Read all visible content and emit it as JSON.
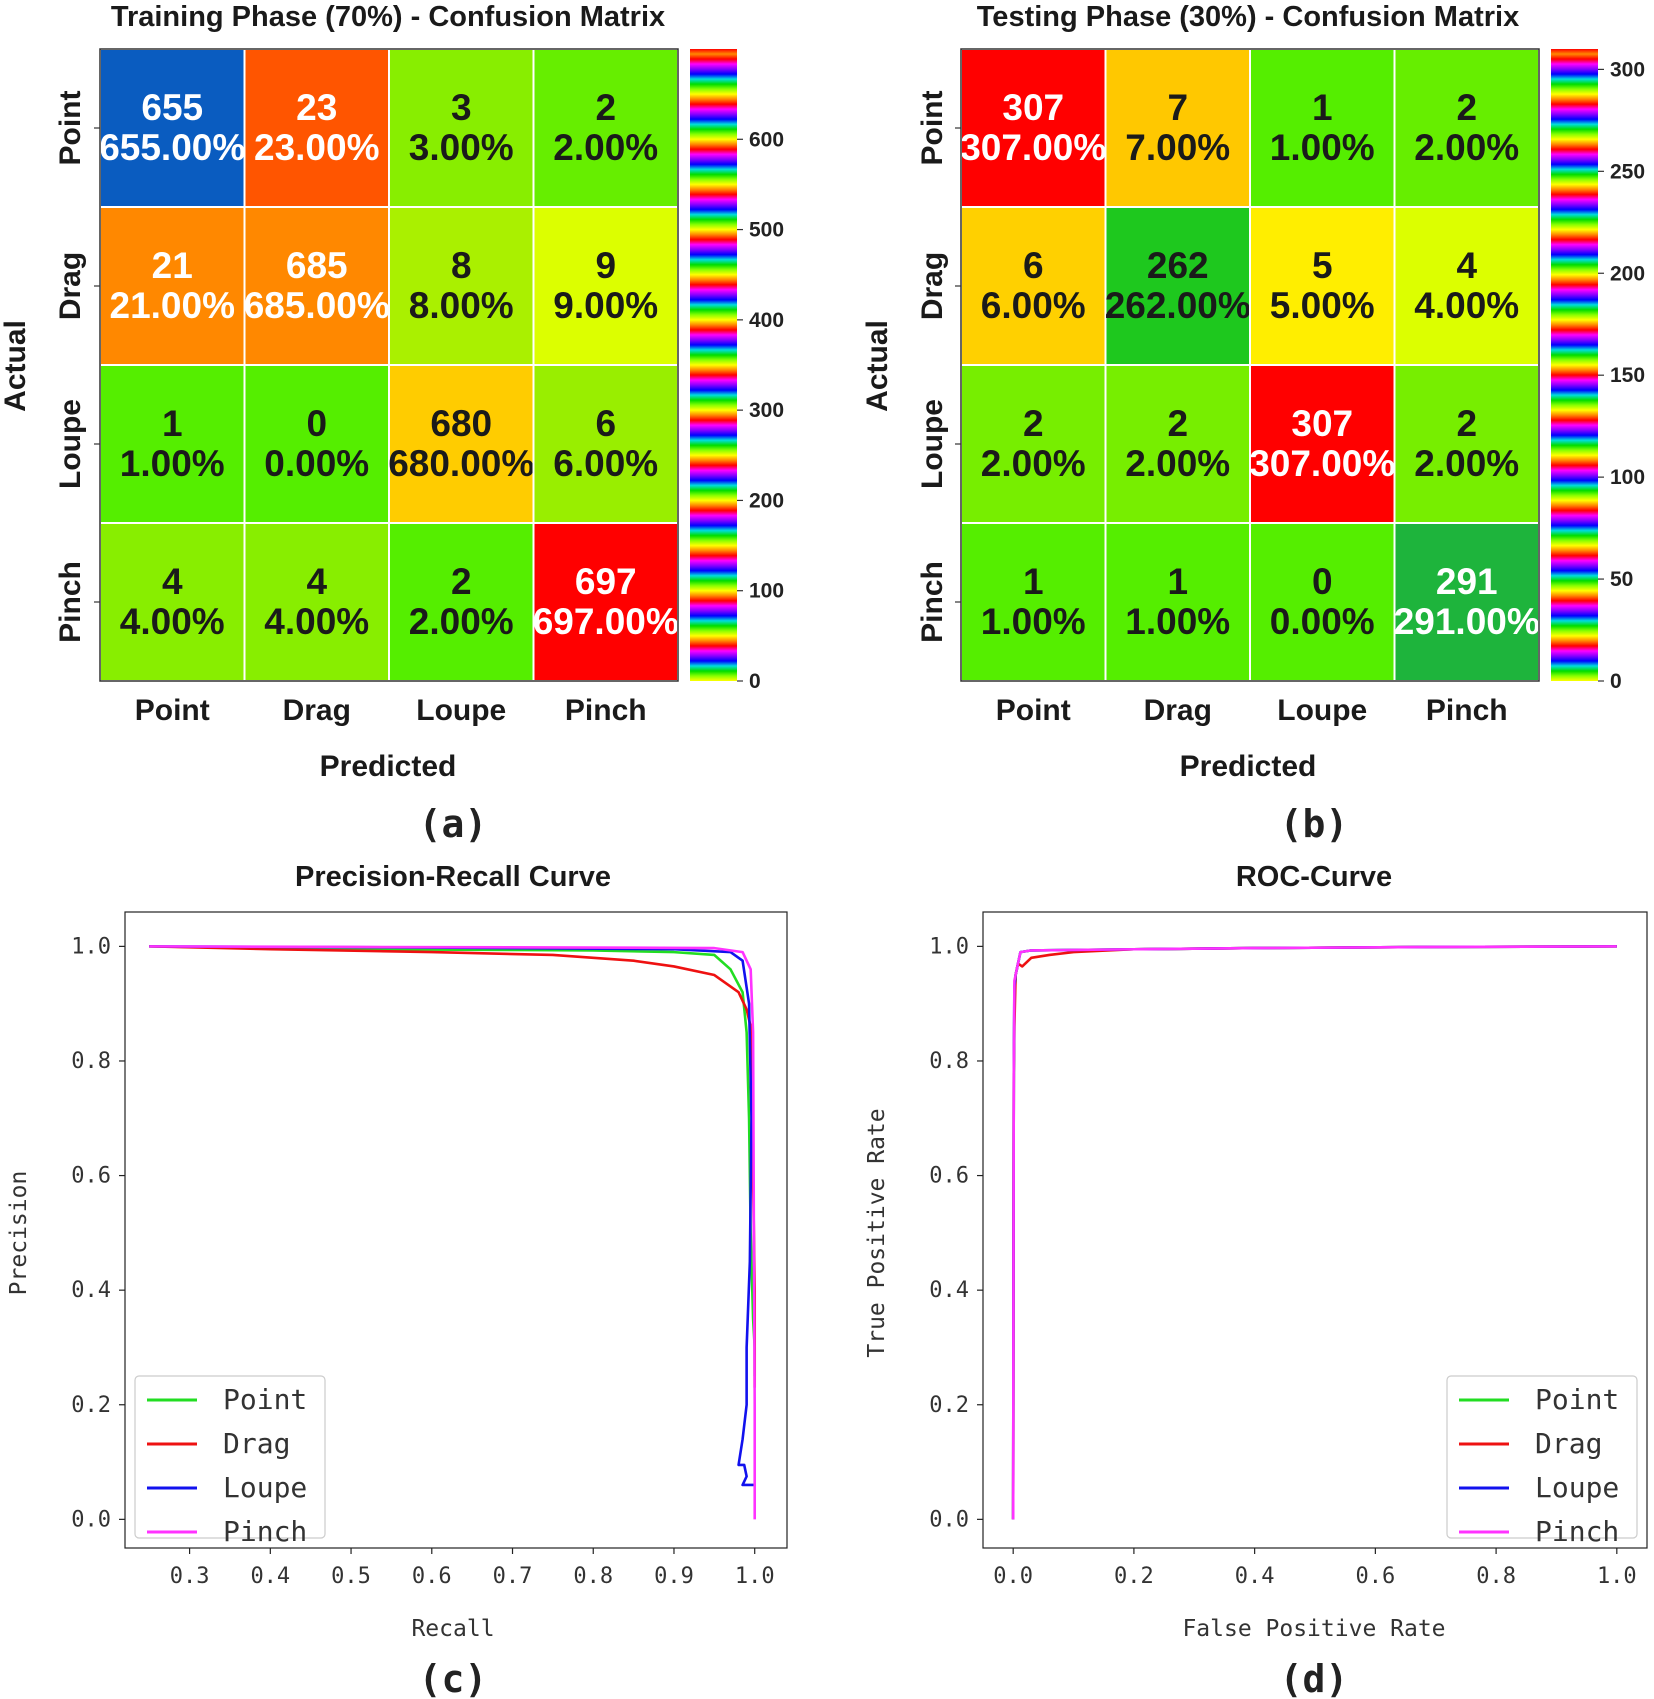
{
  "panels": {
    "a": {
      "label": "(a)"
    },
    "b": {
      "label": "(b)"
    },
    "c": {
      "label": "(c)"
    },
    "d": {
      "label": "(d)"
    }
  },
  "colors": {
    "Point": "#22dd22",
    "Drag": "#ee1111",
    "Loupe": "#1111ee",
    "Pinch": "#ff33ff"
  },
  "chart_data": [
    {
      "type": "heatmap",
      "id": "a",
      "title": "Training Phase (70%) - Confusion Matrix",
      "xlabel": "Predicted",
      "ylabel": "Actual",
      "x_categories": [
        "Point",
        "Drag",
        "Loupe",
        "Pinch"
      ],
      "y_categories": [
        "Point",
        "Drag",
        "Loupe",
        "Pinch"
      ],
      "values": [
        [
          655,
          23,
          3,
          2
        ],
        [
          21,
          685,
          8,
          9
        ],
        [
          1,
          0,
          680,
          6
        ],
        [
          4,
          4,
          2,
          697
        ]
      ],
      "cell_labels": [
        [
          [
            "655",
            "655.00%"
          ],
          [
            "23",
            "23.00%"
          ],
          [
            "3",
            "3.00%"
          ],
          [
            "2",
            "2.00%"
          ]
        ],
        [
          [
            "21",
            "21.00%"
          ],
          [
            "685",
            "685.00%"
          ],
          [
            "8",
            "8.00%"
          ],
          [
            "9",
            "9.00%"
          ]
        ],
        [
          [
            "1",
            "1.00%"
          ],
          [
            "0",
            "0.00%"
          ],
          [
            "680",
            "680.00%"
          ],
          [
            "6",
            "6.00%"
          ]
        ],
        [
          [
            "4",
            "4.00%"
          ],
          [
            "4",
            "4.00%"
          ],
          [
            "2",
            "2.00%"
          ],
          [
            "697",
            "697.00%"
          ]
        ]
      ],
      "cell_colors": [
        [
          "#0a5cc0",
          "#ff5500",
          "#88ee00",
          "#66ee00"
        ],
        [
          "#ff8800",
          "#ff8800",
          "#aaf000",
          "#dcff00"
        ],
        [
          "#55ee00",
          "#55ee00",
          "#ffcc00",
          "#99ee00"
        ],
        [
          "#88ee00",
          "#88ee00",
          "#55ee00",
          "#ff0000"
        ]
      ],
      "cell_text_light": [
        [
          true,
          true,
          false,
          false
        ],
        [
          true,
          true,
          false,
          false
        ],
        [
          false,
          false,
          false,
          false
        ],
        [
          false,
          false,
          false,
          true
        ]
      ],
      "colorbar": {
        "min": 0,
        "max": 700,
        "ticks": [
          0,
          100,
          200,
          300,
          400,
          500,
          600
        ]
      }
    },
    {
      "type": "heatmap",
      "id": "b",
      "title": "Testing Phase (30%) - Confusion Matrix",
      "xlabel": "Predicted",
      "ylabel": "Actual",
      "x_categories": [
        "Point",
        "Drag",
        "Loupe",
        "Pinch"
      ],
      "y_categories": [
        "Point",
        "Drag",
        "Loupe",
        "Pinch"
      ],
      "values": [
        [
          307,
          7,
          1,
          2
        ],
        [
          6,
          262,
          5,
          4
        ],
        [
          2,
          2,
          307,
          2
        ],
        [
          1,
          1,
          0,
          291
        ]
      ],
      "cell_labels": [
        [
          [
            "307",
            "307.00%"
          ],
          [
            "7",
            "7.00%"
          ],
          [
            "1",
            "1.00%"
          ],
          [
            "2",
            "2.00%"
          ]
        ],
        [
          [
            "6",
            "6.00%"
          ],
          [
            "262",
            "262.00%"
          ],
          [
            "5",
            "5.00%"
          ],
          [
            "4",
            "4.00%"
          ]
        ],
        [
          [
            "2",
            "2.00%"
          ],
          [
            "2",
            "2.00%"
          ],
          [
            "307",
            "307.00%"
          ],
          [
            "2",
            "2.00%"
          ]
        ],
        [
          [
            "1",
            "1.00%"
          ],
          [
            "1",
            "1.00%"
          ],
          [
            "0",
            "0.00%"
          ],
          [
            "291",
            "291.00%"
          ]
        ]
      ],
      "cell_colors": [
        [
          "#ff0000",
          "#ffc800",
          "#55ee00",
          "#66ee00"
        ],
        [
          "#ffd000",
          "#1ec81e",
          "#ffee00",
          "#dcff00"
        ],
        [
          "#77ee00",
          "#77ee00",
          "#ff0000",
          "#77ee00"
        ],
        [
          "#55ee00",
          "#55ee00",
          "#55ee00",
          "#1eb43c"
        ]
      ],
      "cell_text_light": [
        [
          true,
          false,
          false,
          false
        ],
        [
          false,
          false,
          false,
          false
        ],
        [
          false,
          false,
          true,
          false
        ],
        [
          false,
          false,
          false,
          true
        ]
      ],
      "colorbar": {
        "min": 0,
        "max": 310,
        "ticks": [
          0,
          50,
          100,
          150,
          200,
          250,
          300
        ]
      }
    },
    {
      "type": "line",
      "id": "c",
      "title": "Precision-Recall Curve",
      "xlabel": "Recall",
      "ylabel": "Precision",
      "xlim": [
        0.22,
        1.04
      ],
      "ylim": [
        -0.05,
        1.06
      ],
      "xticks": [
        0.3,
        0.4,
        0.5,
        0.6,
        0.7,
        0.8,
        0.9,
        1.0
      ],
      "yticks": [
        0.0,
        0.2,
        0.4,
        0.6,
        0.8,
        1.0
      ],
      "legend": "lower-left",
      "series": [
        {
          "name": "Point",
          "points": [
            [
              0.25,
              1.0
            ],
            [
              0.5,
              0.995
            ],
            [
              0.8,
              0.993
            ],
            [
              0.9,
              0.99
            ],
            [
              0.95,
              0.985
            ],
            [
              0.97,
              0.96
            ],
            [
              0.985,
              0.92
            ],
            [
              0.99,
              0.85
            ],
            [
              0.993,
              0.7
            ],
            [
              0.995,
              0.5
            ],
            [
              0.998,
              0.35
            ],
            [
              1.0,
              0.3
            ],
            [
              1.0,
              0.25
            ]
          ]
        },
        {
          "name": "Drag",
          "points": [
            [
              0.25,
              1.0
            ],
            [
              0.4,
              0.995
            ],
            [
              0.6,
              0.99
            ],
            [
              0.75,
              0.985
            ],
            [
              0.85,
              0.975
            ],
            [
              0.9,
              0.965
            ],
            [
              0.95,
              0.95
            ],
            [
              0.98,
              0.92
            ],
            [
              0.99,
              0.89
            ],
            [
              0.995,
              0.86
            ],
            [
              0.998,
              0.6
            ],
            [
              1.0,
              0.4
            ],
            [
              1.0,
              0.23
            ]
          ]
        },
        {
          "name": "Loupe",
          "points": [
            [
              0.25,
              1.0
            ],
            [
              0.6,
              0.998
            ],
            [
              0.9,
              0.995
            ],
            [
              0.97,
              0.99
            ],
            [
              0.985,
              0.975
            ],
            [
              0.993,
              0.9
            ],
            [
              0.996,
              0.7
            ],
            [
              0.994,
              0.45
            ],
            [
              0.99,
              0.3
            ],
            [
              0.99,
              0.2
            ],
            [
              0.985,
              0.14
            ],
            [
              0.98,
              0.095
            ],
            [
              0.987,
              0.095
            ],
            [
              0.99,
              0.075
            ],
            [
              0.985,
              0.06
            ],
            [
              1.0,
              0.06
            ]
          ]
        },
        {
          "name": "Pinch",
          "points": [
            [
              0.25,
              1.0
            ],
            [
              0.5,
              0.999
            ],
            [
              0.8,
              0.998
            ],
            [
              0.95,
              0.997
            ],
            [
              0.985,
              0.99
            ],
            [
              0.995,
              0.96
            ],
            [
              0.998,
              0.85
            ],
            [
              0.999,
              0.5
            ],
            [
              1.0,
              0.2
            ],
            [
              1.0,
              0.0
            ]
          ]
        }
      ]
    },
    {
      "type": "line",
      "id": "d",
      "title": "ROC-Curve",
      "xlabel": "False Positive Rate",
      "ylabel": "True Positive Rate",
      "xlim": [
        -0.05,
        1.05
      ],
      "ylim": [
        -0.05,
        1.06
      ],
      "xticks": [
        0.0,
        0.2,
        0.4,
        0.6,
        0.8,
        1.0
      ],
      "yticks": [
        0.0,
        0.2,
        0.4,
        0.6,
        0.8,
        1.0
      ],
      "legend": "lower-right",
      "series": [
        {
          "name": "Point",
          "points": [
            [
              0,
              0
            ],
            [
              0.0005,
              0.45
            ],
            [
              0.001,
              0.78
            ],
            [
              0.002,
              0.9
            ],
            [
              0.004,
              0.95
            ],
            [
              0.008,
              0.97
            ],
            [
              0.012,
              0.99
            ],
            [
              0.03,
              0.993
            ],
            [
              0.2,
              0.995
            ],
            [
              0.4,
              0.997
            ],
            [
              0.7,
              0.999
            ],
            [
              1,
              1
            ]
          ]
        },
        {
          "name": "Drag",
          "points": [
            [
              0,
              0
            ],
            [
              0.0005,
              0.45
            ],
            [
              0.001,
              0.78
            ],
            [
              0.002,
              0.86
            ],
            [
              0.004,
              0.95
            ],
            [
              0.008,
              0.97
            ],
            [
              0.015,
              0.965
            ],
            [
              0.03,
              0.98
            ],
            [
              0.06,
              0.985
            ],
            [
              0.1,
              0.99
            ],
            [
              0.2,
              0.995
            ],
            [
              0.4,
              0.997
            ],
            [
              0.7,
              0.999
            ],
            [
              1,
              1
            ]
          ]
        },
        {
          "name": "Loupe",
          "points": [
            [
              0,
              0
            ],
            [
              0.0005,
              0.45
            ],
            [
              0.001,
              0.78
            ],
            [
              0.002,
              0.93
            ],
            [
              0.004,
              0.95
            ],
            [
              0.008,
              0.97
            ],
            [
              0.012,
              0.99
            ],
            [
              0.03,
              0.993
            ],
            [
              0.2,
              0.995
            ],
            [
              0.4,
              0.997
            ],
            [
              0.7,
              0.999
            ],
            [
              1,
              1
            ]
          ]
        },
        {
          "name": "Pinch",
          "points": [
            [
              0,
              0
            ],
            [
              0.0005,
              0.45
            ],
            [
              0.001,
              0.78
            ],
            [
              0.002,
              0.94
            ],
            [
              0.004,
              0.95
            ],
            [
              0.008,
              0.97
            ],
            [
              0.012,
              0.99
            ],
            [
              0.03,
              0.993
            ],
            [
              0.2,
              0.995
            ],
            [
              0.4,
              0.997
            ],
            [
              0.7,
              0.999
            ],
            [
              1,
              1
            ]
          ]
        }
      ]
    }
  ]
}
